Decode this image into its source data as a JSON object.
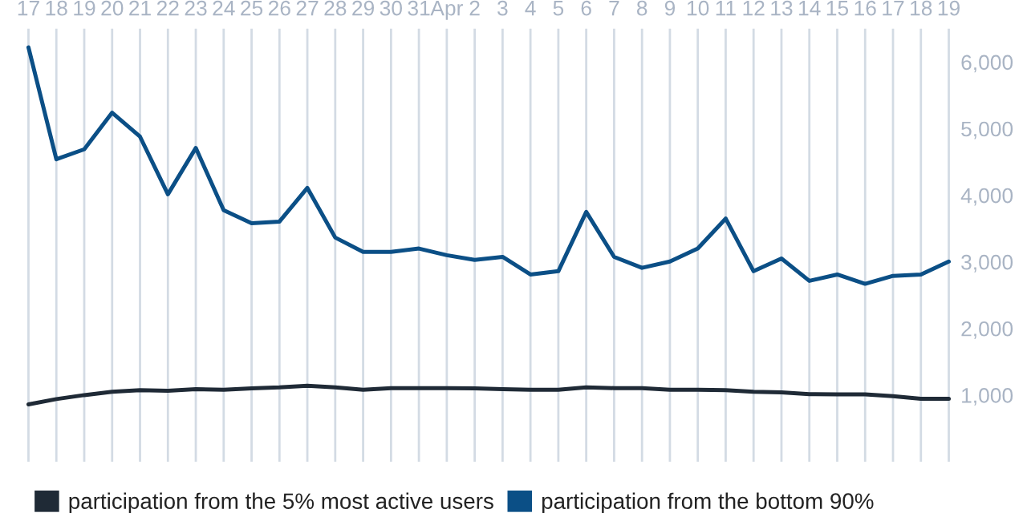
{
  "chart_data": {
    "type": "line",
    "categories": [
      "17",
      "18",
      "19",
      "20",
      "21",
      "22",
      "23",
      "24",
      "25",
      "26",
      "27",
      "28",
      "29",
      "30",
      "31",
      "Apr",
      "2",
      "3",
      "4",
      "5",
      "6",
      "7",
      "8",
      "9",
      "10",
      "11",
      "12",
      "13",
      "14",
      "15",
      "16",
      "17",
      "18",
      "19"
    ],
    "series": [
      {
        "name": "participation from the 5% most active users",
        "color": "#1f2a36",
        "values": [
          860,
          940,
          1000,
          1050,
          1075,
          1065,
          1090,
          1080,
          1100,
          1115,
          1140,
          1115,
          1080,
          1105,
          1105,
          1105,
          1100,
          1090,
          1080,
          1080,
          1115,
          1105,
          1105,
          1080,
          1080,
          1075,
          1050,
          1040,
          1015,
          1010,
          1010,
          985,
          945,
          945
        ]
      },
      {
        "name": "participation from the bottom 90%",
        "color": "#0b4f86",
        "values": [
          6220,
          4540,
          4690,
          5240,
          4880,
          4015,
          4710,
          3775,
          3580,
          3605,
          4110,
          3365,
          3150,
          3150,
          3200,
          3100,
          3030,
          3075,
          2810,
          2860,
          3750,
          3075,
          2910,
          3005,
          3200,
          3650,
          2860,
          3050,
          2715,
          2810,
          2670,
          2790,
          2810,
          3005
        ]
      }
    ],
    "ylim": [
      0,
      6500
    ],
    "yticks": [
      {
        "value": 1000,
        "label": "1,000"
      },
      {
        "value": 2000,
        "label": "2,000"
      },
      {
        "value": 3000,
        "label": "3,000"
      },
      {
        "value": 4000,
        "label": "4,000"
      },
      {
        "value": 5000,
        "label": "5,000"
      },
      {
        "value": 6000,
        "label": "6,000"
      }
    ],
    "grid": "x",
    "legend": "bottom",
    "marker": "none",
    "line_style": "solid"
  }
}
